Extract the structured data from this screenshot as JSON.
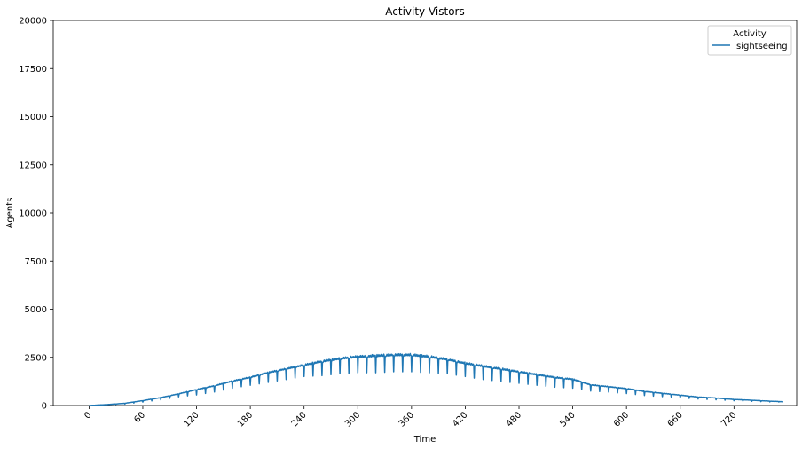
{
  "chart_data": {
    "type": "line",
    "title": "Activity Vistors",
    "xlabel": "Time",
    "ylabel": "Agents",
    "xlim": [
      -40,
      790
    ],
    "ylim": [
      0,
      20000
    ],
    "x_ticks": [
      "0",
      "60",
      "120",
      "180",
      "240",
      "300",
      "360",
      "420",
      "480",
      "540",
      "600",
      "660",
      "720"
    ],
    "y_ticks": [
      "0",
      "2500",
      "5000",
      "7500",
      "10000",
      "12500",
      "15000",
      "17500",
      "20000"
    ],
    "grid": false,
    "legend": {
      "title": "Activity",
      "placement": "top-right"
    },
    "series": [
      {
        "name": "sightseeing",
        "color": "#1f77b4",
        "x": [
          0,
          20,
          40,
          60,
          80,
          100,
          120,
          140,
          160,
          180,
          200,
          220,
          240,
          260,
          280,
          300,
          320,
          340,
          360,
          380,
          400,
          420,
          440,
          460,
          480,
          500,
          520,
          540,
          560,
          580,
          600,
          620,
          640,
          660,
          680,
          700,
          720,
          740,
          760,
          775
        ],
        "values": [
          0,
          50,
          120,
          260,
          420,
          620,
          850,
          1050,
          1300,
          1500,
          1750,
          1950,
          2150,
          2350,
          2500,
          2600,
          2650,
          2700,
          2700,
          2600,
          2450,
          2250,
          2100,
          1950,
          1800,
          1650,
          1500,
          1400,
          1100,
          1000,
          900,
          750,
          650,
          550,
          450,
          400,
          320,
          280,
          230,
          200
        ],
        "dip_values": [
          0,
          40,
          80,
          180,
          300,
          450,
          550,
          700,
          900,
          1050,
          1200,
          1350,
          1500,
          1550,
          1650,
          1700,
          1700,
          1750,
          1750,
          1700,
          1650,
          1500,
          1350,
          1250,
          1150,
          1050,
          950,
          900,
          750,
          700,
          620,
          520,
          460,
          400,
          340,
          300,
          250,
          220,
          190,
          180
        ],
        "dip_period": 10
      }
    ]
  }
}
